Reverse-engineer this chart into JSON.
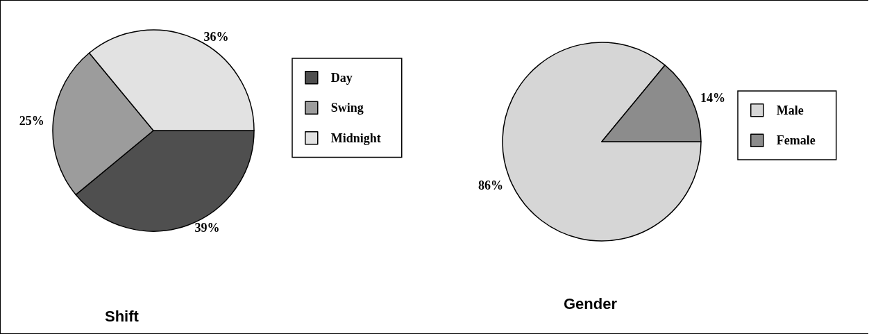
{
  "chart_data": [
    {
      "type": "pie",
      "title": "Shift",
      "categories": [
        "Day",
        "Swing",
        "Midnight"
      ],
      "values": [
        39,
        25,
        36
      ],
      "value_labels": [
        "39%",
        "25%",
        "36%"
      ],
      "colors": [
        "#4f4f4f",
        "#9c9c9c",
        "#e2e2e2"
      ],
      "legend": "right"
    },
    {
      "type": "pie",
      "title": "Gender",
      "categories": [
        "Male",
        "Female"
      ],
      "values": [
        86,
        14
      ],
      "value_labels": [
        "86%",
        "14%"
      ],
      "colors": [
        "#d6d6d6",
        "#8c8c8c"
      ],
      "legend": "right"
    }
  ]
}
